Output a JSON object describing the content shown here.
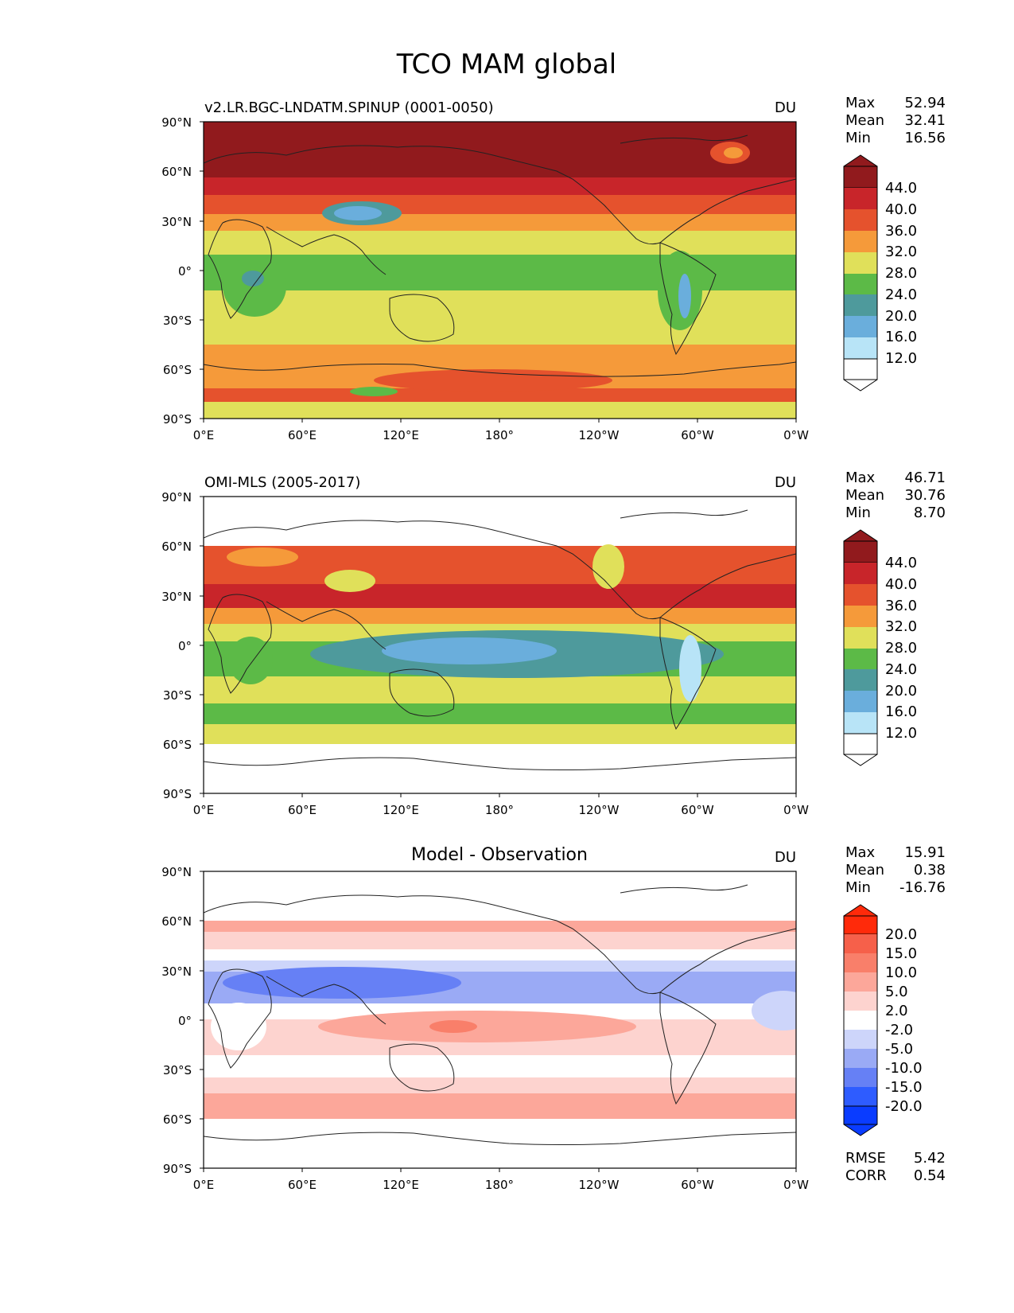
{
  "title": "TCO MAM global",
  "colors": {
    "abs_levels": [
      "#ffffff",
      "#b8e4f7",
      "#6aaedc",
      "#4e9a9c",
      "#5cba47",
      "#e0e05a",
      "#f59a3a",
      "#e5522d",
      "#c8252a",
      "#911a1d"
    ],
    "diff_levels": [
      "#0a3cff",
      "#2e5cff",
      "#6680f5",
      "#9aaaf5",
      "#cdd5fa",
      "#ffffff",
      "#fdd3cf",
      "#fca79a",
      "#f97f6a",
      "#f6604a",
      "#ff2a0a"
    ],
    "coast": "#222222",
    "frame": "#000000"
  },
  "axes": {
    "lat_ticks": [
      "90°N",
      "60°N",
      "30°N",
      "0°",
      "30°S",
      "60°S",
      "90°S"
    ],
    "lon_ticks": [
      "0°E",
      "60°E",
      "120°E",
      "180°",
      "120°W",
      "60°W",
      "0°W"
    ]
  },
  "chart_data": [
    {
      "type": "heatmap",
      "variable": "TCO",
      "left_title": "v2.LR.BGC-LNDATM.SPINUP (0001-0050)",
      "center_title": "",
      "units": "DU",
      "stats": {
        "max_label": "Max",
        "max": "52.94",
        "mean_label": "Mean",
        "mean": "32.41",
        "min_label": "Min",
        "min": "16.56"
      },
      "colorbar": {
        "ticks": [
          "44.0",
          "40.0",
          "36.0",
          "32.0",
          "28.0",
          "24.0",
          "20.0",
          "16.0",
          "12.0"
        ],
        "extend": "both"
      },
      "lat_range": [
        -90,
        90
      ],
      "lon_range": [
        0,
        360
      ],
      "zonal_mean_profile": {
        "lat": [
          90,
          75,
          60,
          50,
          40,
          30,
          20,
          10,
          0,
          -10,
          -20,
          -30,
          -40,
          -50,
          -60,
          -70,
          -80,
          -90
        ],
        "value": [
          46,
          46,
          44,
          42,
          38,
          34,
          30,
          27,
          26,
          29,
          30,
          30,
          30,
          32,
          34,
          36,
          33,
          30
        ]
      }
    },
    {
      "type": "heatmap",
      "variable": "TCO",
      "left_title": "OMI-MLS (2005-2017)",
      "center_title": "",
      "units": "DU",
      "stats": {
        "max_label": "Max",
        "max": "46.71",
        "mean_label": "Mean",
        "mean": "30.76",
        "min_label": "Min",
        "min": "8.70"
      },
      "colorbar": {
        "ticks": [
          "44.0",
          "40.0",
          "36.0",
          "32.0",
          "28.0",
          "24.0",
          "20.0",
          "16.0",
          "12.0"
        ],
        "extend": "both"
      },
      "lat_range": [
        -90,
        90
      ],
      "lon_range": [
        0,
        360
      ],
      "data_lat_extent": [
        -60,
        60
      ],
      "zonal_mean_profile": {
        "lat": [
          60,
          50,
          40,
          30,
          20,
          10,
          0,
          -10,
          -20,
          -30,
          -40,
          -50,
          -60
        ],
        "value": [
          38,
          37,
          37,
          36,
          33,
          28,
          24,
          23,
          26,
          28,
          27,
          29,
          30
        ]
      }
    },
    {
      "type": "heatmap",
      "variable": "TCO difference",
      "left_title": "",
      "center_title": "Model - Observation",
      "units": "DU",
      "stats": {
        "max_label": "Max",
        "max": "15.91",
        "mean_label": "Mean",
        "mean": "0.38",
        "min_label": "Min",
        "min": "-16.76"
      },
      "metrics": {
        "rmse_label": "RMSE",
        "rmse": "5.42",
        "corr_label": "CORR",
        "corr": "0.54"
      },
      "colorbar": {
        "ticks": [
          "20.0",
          "15.0",
          "10.0",
          "5.0",
          "2.0",
          "-2.0",
          "-5.0",
          "-10.0",
          "-15.0",
          "-20.0"
        ],
        "extend": "both"
      },
      "lat_range": [
        -90,
        90
      ],
      "lon_range": [
        0,
        360
      ],
      "data_lat_extent": [
        -60,
        60
      ],
      "zonal_mean_profile": {
        "lat": [
          60,
          50,
          40,
          30,
          20,
          10,
          0,
          -10,
          -20,
          -30,
          -40,
          -50,
          -60
        ],
        "value": [
          5,
          4,
          0,
          -4,
          -7,
          -3,
          3,
          4,
          2,
          0,
          3,
          3,
          4
        ]
      }
    }
  ]
}
